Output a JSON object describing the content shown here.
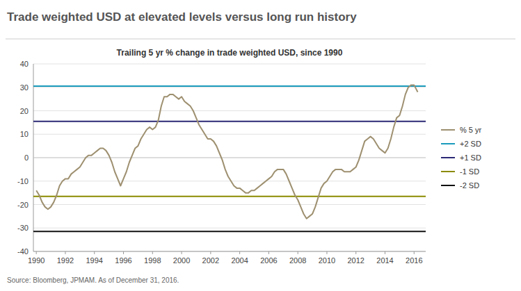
{
  "chart_data": {
    "type": "line",
    "title": "Trade weighted USD at elevated levels versus long run history",
    "subtitle": "Trailing 5 yr % change in trade weighted USD, since 1990",
    "source": "Source: Bloomberg, JPMAM. As of December 31, 2016.",
    "x": [
      1990.0,
      1990.2,
      1990.4,
      1990.6,
      1990.8,
      1991.0,
      1991.2,
      1991.4,
      1991.6,
      1991.8,
      1992.0,
      1992.2,
      1992.4,
      1992.6,
      1992.8,
      1993.0,
      1993.2,
      1993.4,
      1993.6,
      1993.8,
      1994.0,
      1994.2,
      1994.4,
      1994.6,
      1994.8,
      1995.0,
      1995.2,
      1995.4,
      1995.6,
      1995.8,
      1996.0,
      1996.2,
      1996.4,
      1996.6,
      1996.8,
      1997.0,
      1997.2,
      1997.4,
      1997.6,
      1997.8,
      1998.0,
      1998.2,
      1998.4,
      1998.6,
      1998.8,
      1999.0,
      1999.2,
      1999.4,
      1999.6,
      1999.8,
      2000.0,
      2000.2,
      2000.4,
      2000.6,
      2000.8,
      2001.0,
      2001.2,
      2001.4,
      2001.6,
      2001.8,
      2002.0,
      2002.2,
      2002.4,
      2002.6,
      2002.8,
      2003.0,
      2003.2,
      2003.4,
      2003.6,
      2003.8,
      2004.0,
      2004.2,
      2004.4,
      2004.6,
      2004.8,
      2005.0,
      2005.2,
      2005.4,
      2005.6,
      2005.8,
      2006.0,
      2006.2,
      2006.4,
      2006.6,
      2006.8,
      2007.0,
      2007.2,
      2007.4,
      2007.6,
      2007.8,
      2008.0,
      2008.2,
      2008.4,
      2008.6,
      2008.8,
      2009.0,
      2009.2,
      2009.4,
      2009.6,
      2009.8,
      2010.0,
      2010.2,
      2010.4,
      2010.6,
      2010.8,
      2011.0,
      2011.2,
      2011.4,
      2011.6,
      2011.8,
      2012.0,
      2012.2,
      2012.4,
      2012.6,
      2012.8,
      2013.0,
      2013.2,
      2013.4,
      2013.6,
      2013.8,
      2014.0,
      2014.2,
      2014.4,
      2014.6,
      2014.8,
      2015.0,
      2015.2,
      2015.4,
      2015.6,
      2015.8,
      2016.0,
      2016.25
    ],
    "series": [
      {
        "name": "% 5 yr",
        "color": "#9e9070",
        "values": [
          -14,
          -16,
          -19,
          -21,
          -22,
          -21,
          -19,
          -16,
          -12,
          -10,
          -9,
          -9,
          -7,
          -6,
          -5,
          -4,
          -2,
          0,
          1,
          1,
          2,
          3,
          4,
          4,
          3,
          1,
          -2,
          -6,
          -9,
          -12,
          -9,
          -6,
          -2,
          1,
          4,
          5,
          8,
          10,
          12,
          13,
          12,
          13,
          16,
          22,
          26,
          26,
          27,
          27,
          26,
          25,
          26,
          24,
          23,
          22,
          20,
          17,
          14,
          12,
          10,
          8,
          8,
          7,
          5,
          2,
          -1,
          -5,
          -8,
          -10,
          -12,
          -13,
          -13,
          -14,
          -15,
          -15,
          -14,
          -14,
          -13,
          -12,
          -11,
          -10,
          -9,
          -8,
          -6,
          -5,
          -5,
          -5,
          -7,
          -10,
          -13,
          -16,
          -18,
          -21,
          -24,
          -26,
          -25,
          -24,
          -21,
          -17,
          -13,
          -11,
          -10,
          -8,
          -6,
          -5,
          -5,
          -5,
          -6,
          -6,
          -6,
          -5,
          -4,
          -1,
          3,
          7,
          8,
          9,
          8,
          6,
          4,
          3,
          2,
          4,
          8,
          13,
          17,
          18,
          22,
          27,
          30,
          31,
          31,
          28
        ]
      }
    ],
    "reference_lines": [
      {
        "name": "+2 SD",
        "value": 30.5,
        "color": "#1a9bbc"
      },
      {
        "name": "+1 SD",
        "value": 15.5,
        "color": "#2b2875"
      },
      {
        "value": 0.0,
        "color": "#c8c8c8"
      },
      {
        "name": "-1 SD",
        "value": -16.5,
        "color": "#8b8b00"
      },
      {
        "name": "-2 SD",
        "value": -31.5,
        "color": "#101010"
      }
    ],
    "xlim": [
      1989.8,
      2016.8
    ],
    "ylim": [
      -40,
      40
    ],
    "xticks": [
      1990,
      1992,
      1994,
      1996,
      1998,
      2000,
      2002,
      2004,
      2006,
      2008,
      2010,
      2012,
      2014,
      2016
    ],
    "yticks": [
      -40,
      -30,
      -20,
      -10,
      0,
      10,
      20,
      30,
      40
    ],
    "grid": true,
    "legend": "right"
  }
}
